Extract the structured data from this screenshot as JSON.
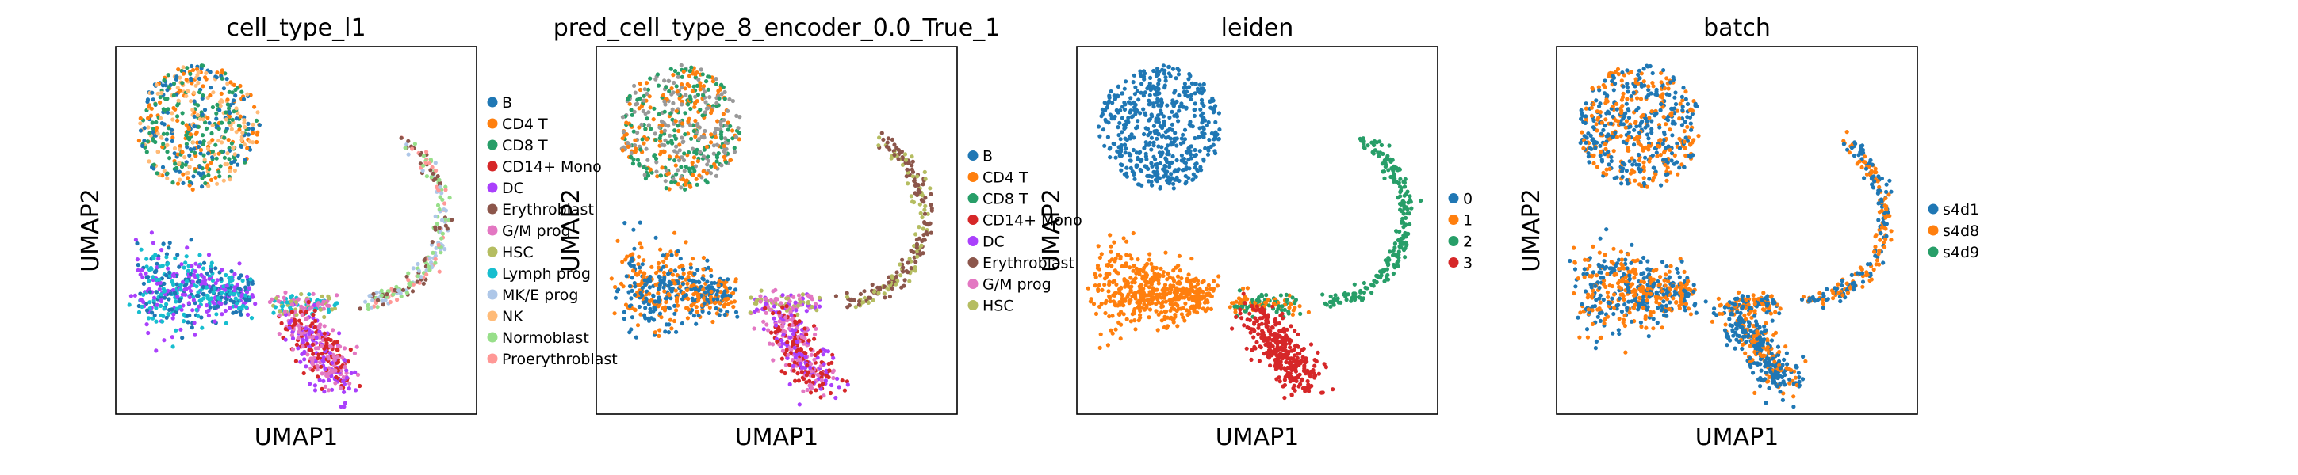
{
  "chart_data": [
    {
      "type": "scatter",
      "title": "cell_type_l1",
      "xlabel": "UMAP1",
      "ylabel": "UMAP2",
      "grid": false,
      "legend_placement": "right",
      "legend": [
        {
          "name": "B",
          "color": "#1f77b4"
        },
        {
          "name": "CD4 T",
          "color": "#ff7f0e"
        },
        {
          "name": "CD8 T",
          "color": "#279e68"
        },
        {
          "name": "CD14+ Mono",
          "color": "#d62728"
        },
        {
          "name": "DC",
          "color": "#aa40fc"
        },
        {
          "name": "Erythroblast",
          "color": "#8c564b"
        },
        {
          "name": "G/M prog",
          "color": "#e377c2"
        },
        {
          "name": "HSC",
          "color": "#b5bd61"
        },
        {
          "name": "Lymph prog",
          "color": "#17becf"
        },
        {
          "name": "MK/E prog",
          "color": "#aec7e8"
        },
        {
          "name": "NK",
          "color": "#ffbb78"
        },
        {
          "name": "Normoblast",
          "color": "#98df8a"
        },
        {
          "name": "Proerythroblast",
          "color": "#ff9896"
        }
      ],
      "clusters": {
        "tcell_blob": [
          "B",
          "CD4 T",
          "CD8 T",
          "NK"
        ],
        "b_blob": [
          "B",
          "Lymph prog",
          "DC"
        ],
        "bridge": [
          "HSC",
          "Lymph prog",
          "G/M prog"
        ],
        "mono_blob": [
          "CD14+ Mono",
          "G/M prog",
          "DC"
        ],
        "ery_arc": [
          "Erythroblast",
          "Proerythroblast",
          "MK/E prog",
          "Normoblast"
        ]
      }
    },
    {
      "type": "scatter",
      "title": "pred_cell_type_8_encoder_0.0_True_1",
      "xlabel": "UMAP1",
      "ylabel": "UMAP2",
      "grid": false,
      "legend_placement": "right",
      "legend": [
        {
          "name": "B",
          "color": "#1f77b4"
        },
        {
          "name": "CD4 T",
          "color": "#ff7f0e"
        },
        {
          "name": "CD8 T",
          "color": "#279e68"
        },
        {
          "name": "CD14+ Mono",
          "color": "#d62728"
        },
        {
          "name": "DC",
          "color": "#aa40fc"
        },
        {
          "name": "Erythroblast",
          "color": "#8c564b"
        },
        {
          "name": "G/M prog",
          "color": "#e377c2"
        },
        {
          "name": "HSC",
          "color": "#b5bd61"
        }
      ],
      "clusters": {
        "tcell_blob": [
          "CD8 T",
          "CD4 T",
          "Proerythroblast"
        ],
        "b_blob": [
          "B",
          "CD4 T"
        ],
        "bridge": [
          "HSC",
          "DC",
          "G/M prog"
        ],
        "mono_blob": [
          "CD14+ Mono",
          "DC",
          "G/M prog"
        ],
        "ery_arc": [
          "Erythroblast",
          "Erythroblast",
          "HSC"
        ]
      }
    },
    {
      "type": "scatter",
      "title": "leiden",
      "xlabel": "UMAP1",
      "ylabel": "UMAP2",
      "grid": false,
      "legend_placement": "right",
      "legend": [
        {
          "name": "0",
          "color": "#1f77b4"
        },
        {
          "name": "1",
          "color": "#ff7f0e"
        },
        {
          "name": "2",
          "color": "#279e68"
        },
        {
          "name": "3",
          "color": "#d62728"
        }
      ],
      "clusters": {
        "tcell_blob": [
          "0"
        ],
        "b_blob": [
          "1"
        ],
        "bridge": [
          "1",
          "2"
        ],
        "mono_blob": [
          "3"
        ],
        "ery_arc": [
          "2"
        ]
      }
    },
    {
      "type": "scatter",
      "title": "batch",
      "xlabel": "UMAP1",
      "ylabel": "UMAP2",
      "grid": false,
      "legend_placement": "right",
      "legend": [
        {
          "name": "s4d1",
          "color": "#1f77b4"
        },
        {
          "name": "s4d8",
          "color": "#ff7f0e"
        },
        {
          "name": "s4d9",
          "color": "#279e68"
        }
      ],
      "clusters": {
        "tcell_blob": [
          "s4d1",
          "s4d8"
        ],
        "b_blob": [
          "s4d1",
          "s4d8"
        ],
        "bridge": [
          "s4d1",
          "s4d8"
        ],
        "mono_blob": [
          "s4d1",
          "s4d1",
          "s4d8"
        ],
        "ery_arc": [
          "s4d1",
          "s4d8"
        ]
      }
    }
  ]
}
